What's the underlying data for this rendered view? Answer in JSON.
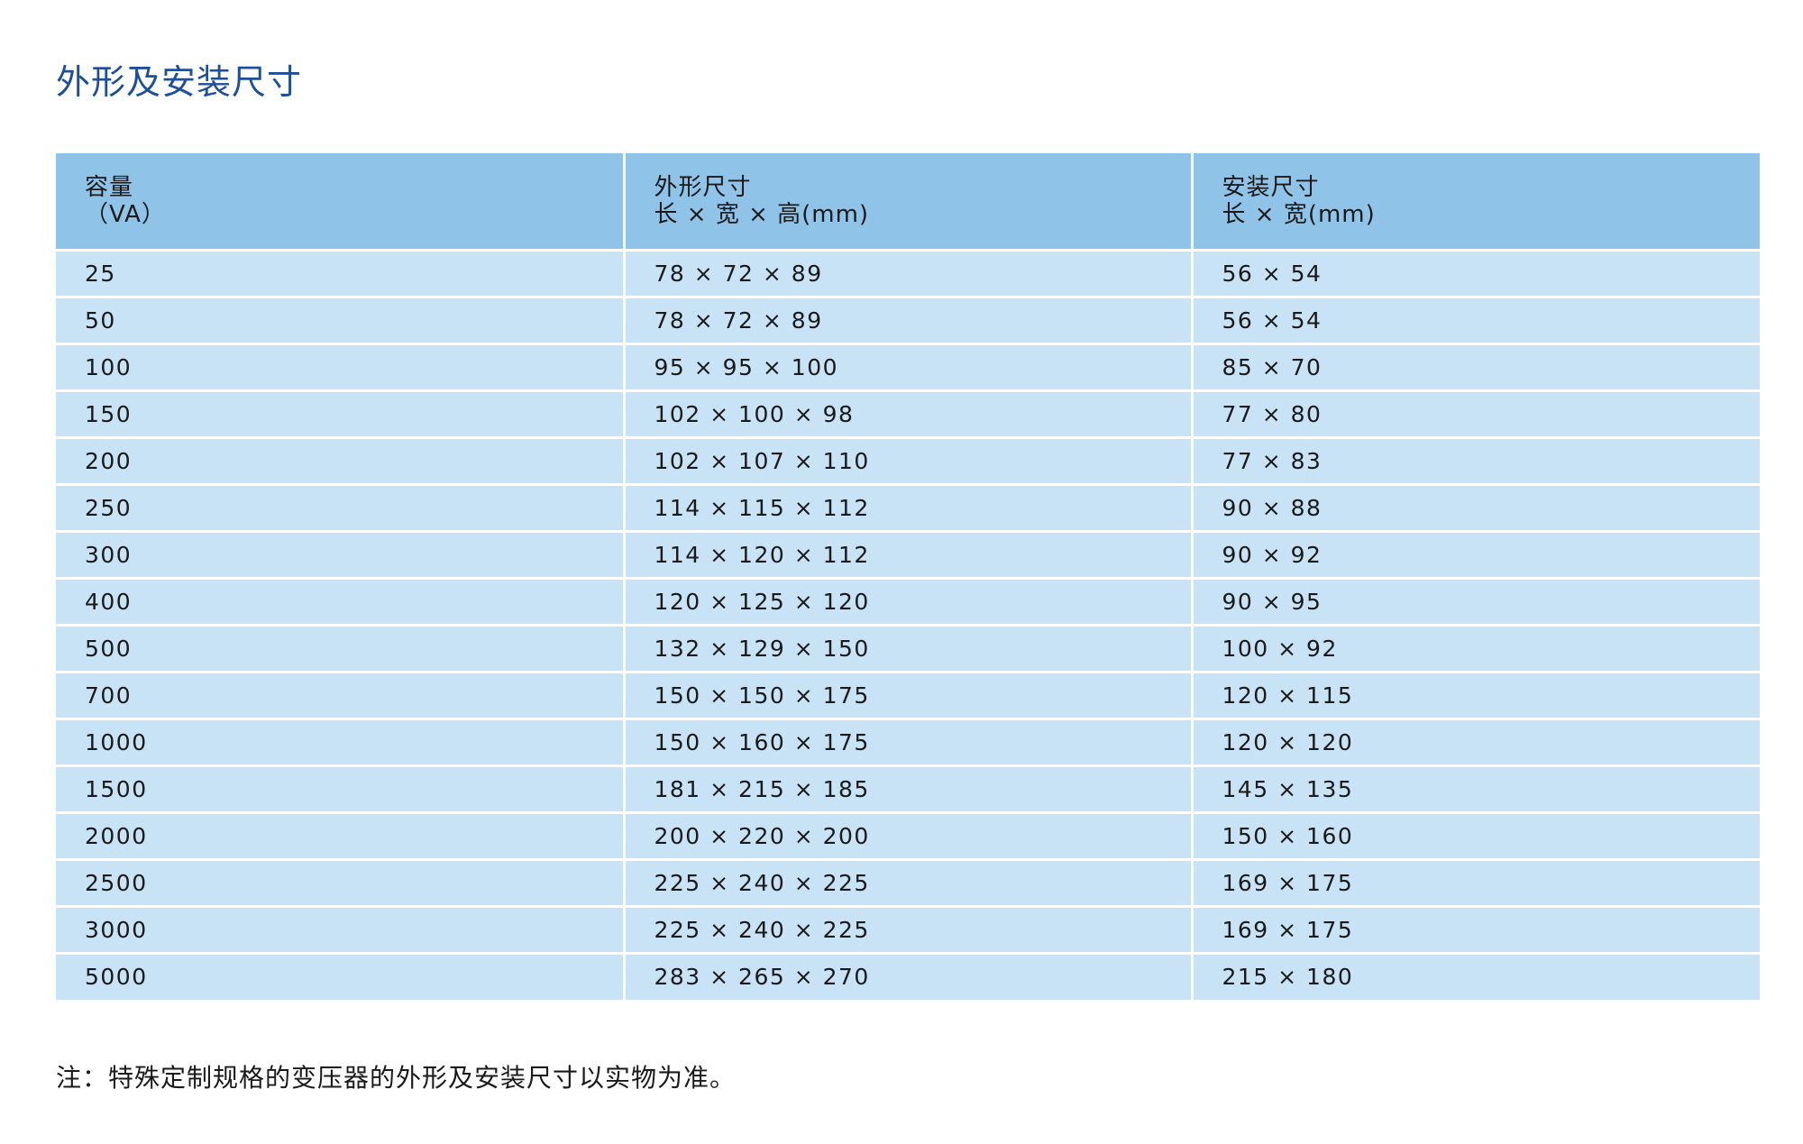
{
  "title": "外形及安装尺寸",
  "table": {
    "headers": [
      {
        "line1": "容量",
        "line2": "（VA）"
      },
      {
        "line1": "外形尺寸",
        "line2": "长 × 宽 × 高(mm)"
      },
      {
        "line1": "安装尺寸",
        "line2": "长 × 宽(mm)"
      }
    ],
    "rows": [
      [
        "25",
        "78 × 72 × 89",
        "56 × 54"
      ],
      [
        "50",
        "78 × 72 × 89",
        "56 × 54"
      ],
      [
        "100",
        "95 × 95 × 100",
        "85 × 70"
      ],
      [
        "150",
        "102 × 100 × 98",
        "77 × 80"
      ],
      [
        "200",
        "102 × 107 × 110",
        "77 × 83"
      ],
      [
        "250",
        "114 × 115 × 112",
        "90 × 88"
      ],
      [
        "300",
        "114 × 120 × 112",
        "90 × 92"
      ],
      [
        "400",
        "120 × 125 × 120",
        "90 × 95"
      ],
      [
        "500",
        "132 × 129 × 150",
        "100 × 92"
      ],
      [
        "700",
        "150 × 150 × 175",
        "120 × 115"
      ],
      [
        "1000",
        "150 × 160 × 175",
        "120 × 120"
      ],
      [
        "1500",
        "181 × 215 × 185",
        "145 × 135"
      ],
      [
        "2000",
        "200 × 220 × 200",
        "150 × 160"
      ],
      [
        "2500",
        "225 × 240 × 225",
        "169 × 175"
      ],
      [
        "3000",
        "225 × 240 × 225",
        "169 × 175"
      ],
      [
        "5000",
        "283 × 265 × 270",
        "215 × 180"
      ]
    ]
  },
  "note": "注：特殊定制规格的变压器的外形及安装尺寸以实物为准。",
  "colors": {
    "title": "#1d4f9a",
    "header_bg": "#8fc4e8",
    "row_bg": "#c8e3f5"
  }
}
